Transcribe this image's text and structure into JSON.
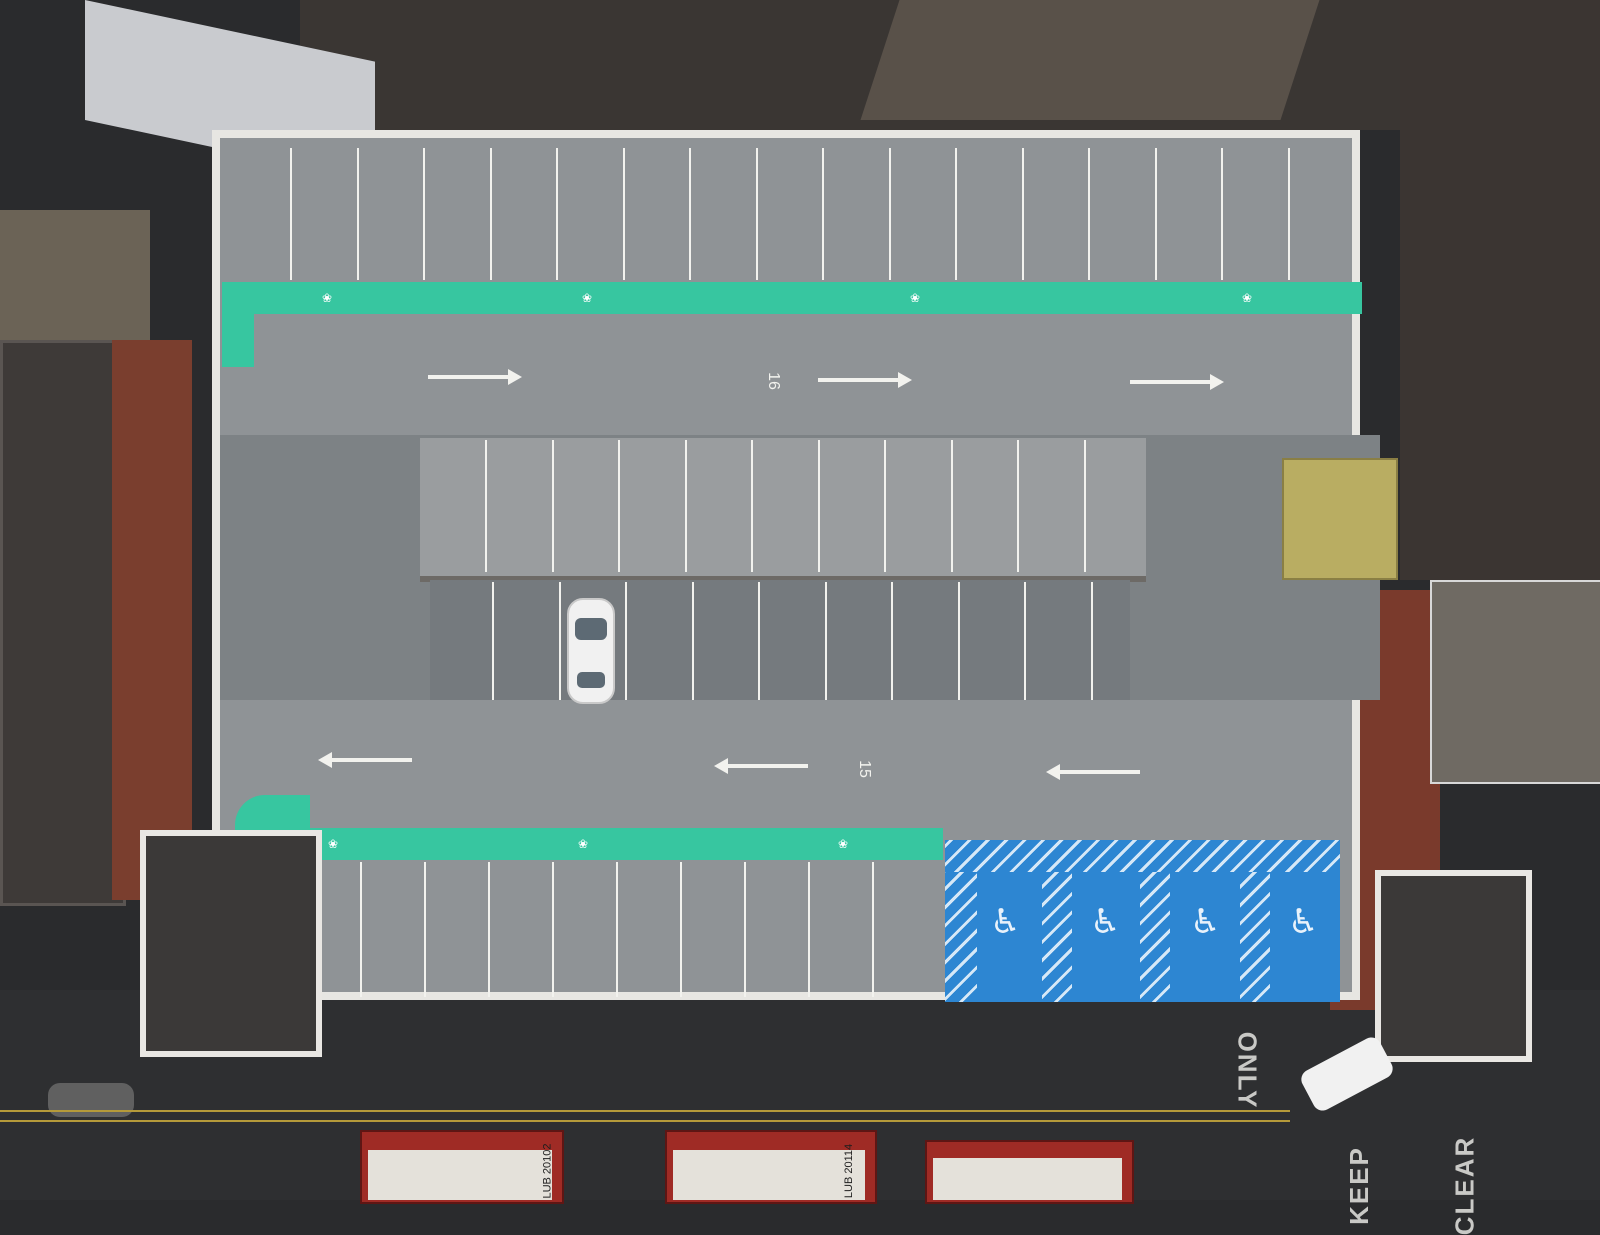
{
  "scene": {
    "deck_numbers": [
      "16",
      "15"
    ],
    "road_markings": [
      "ONLY",
      "KEEP",
      "CLEAR"
    ],
    "bus_plates": [
      "LUB 20102",
      "LUB 20114"
    ],
    "colors": {
      "deck_surface": "#8f9396",
      "walkway": "#37c6a0",
      "disabled_bays": "#2d86d2",
      "bus": "#9f2b25"
    }
  }
}
